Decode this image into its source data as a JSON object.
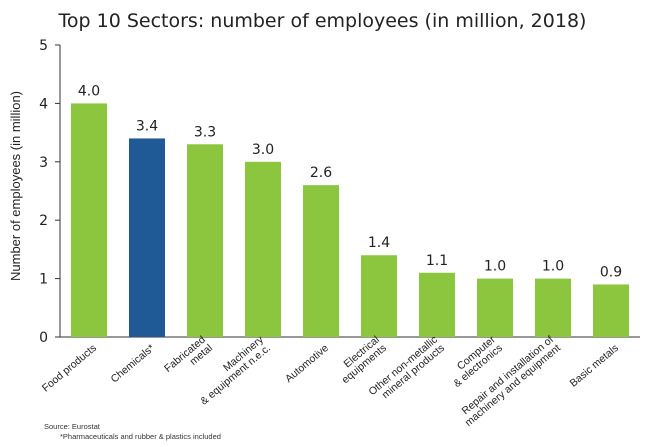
{
  "chart_data": {
    "type": "bar",
    "title": "Top 10 Sectors: number of employees (in million, 2018)",
    "ylabel": "Number of employees (in million)",
    "xlabel": "",
    "ylim": [
      0,
      5
    ],
    "yticks": [
      0,
      1,
      2,
      3,
      4,
      5
    ],
    "grid": false,
    "categories": [
      "Food products",
      "Chemicals*",
      "Fabricated\nmetal",
      "Machinery\n& equipment n.e.c.",
      "Automotive",
      "Electrical\nequipments",
      "Other non-metallic\nmineral products",
      "Computer\n& electronics",
      "Repair and installation of\nmachinery and equipment",
      "Basic metals"
    ],
    "values": [
      4.0,
      3.4,
      3.3,
      3.0,
      2.6,
      1.4,
      1.1,
      1.0,
      1.0,
      0.9
    ],
    "value_labels": [
      "4.0",
      "3.4",
      "3.3",
      "3.0",
      "2.6",
      "1.4",
      "1.1",
      "1.0",
      "1.0",
      "0.9"
    ],
    "highlight_index": 1,
    "colors": {
      "bar": "#8cc63f",
      "highlight": "#1f5a96",
      "axis": "#333333"
    }
  },
  "footnotes": {
    "source": "Source: Eurostat",
    "note": "*Pharmaceuticals and rubber & plastics included"
  }
}
